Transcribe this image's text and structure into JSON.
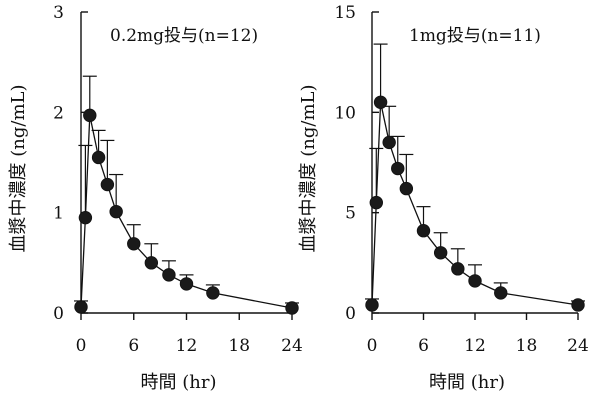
{
  "chart_data": [
    {
      "type": "line",
      "title": "0.2mg投与(n=12)",
      "xlabel": "時間 (hr)",
      "ylabel": "血漿中濃度 (ng/mL)",
      "xlim": [
        0,
        24
      ],
      "ylim": [
        0,
        3
      ],
      "xticks": [
        "0",
        "6",
        "12",
        "18",
        "24"
      ],
      "yticks": [
        "0",
        "1",
        "2",
        "3"
      ],
      "grid": false,
      "error_bars": "upper SD whiskers",
      "x": [
        0,
        0.5,
        1,
        2,
        3,
        4,
        6,
        8,
        10,
        12,
        15,
        24
      ],
      "series": [
        {
          "values": [
            0.06,
            0.95,
            1.97,
            1.55,
            1.28,
            1.01,
            0.69,
            0.5,
            0.38,
            0.29,
            0.2,
            0.05
          ],
          "err_upper": [
            0.12,
            1.67,
            2.36,
            1.82,
            1.72,
            1.38,
            0.88,
            0.69,
            0.52,
            0.38,
            0.28,
            0.1
          ]
        }
      ]
    },
    {
      "type": "line",
      "title": "1mg投与(n=11)",
      "xlabel": "時間 (hr)",
      "ylabel": "血漿中濃度 (ng/mL)",
      "xlim": [
        0,
        24
      ],
      "ylim": [
        0,
        15
      ],
      "xticks": [
        "0",
        "6",
        "12",
        "18",
        "24"
      ],
      "yticks": [
        "0",
        "5",
        "10",
        "15"
      ],
      "grid": false,
      "error_bars": "upper SD whiskers",
      "x": [
        0,
        0.5,
        1,
        2,
        3,
        4,
        6,
        8,
        10,
        12,
        15,
        24
      ],
      "series": [
        {
          "values": [
            0.4,
            5.5,
            10.5,
            8.5,
            7.2,
            6.2,
            4.1,
            3.0,
            2.2,
            1.6,
            1.0,
            0.4
          ],
          "err_upper": [
            0.7,
            8.2,
            13.4,
            10.3,
            8.8,
            7.9,
            5.3,
            4.0,
            3.2,
            2.4,
            1.5,
            0.6
          ]
        }
      ]
    }
  ]
}
